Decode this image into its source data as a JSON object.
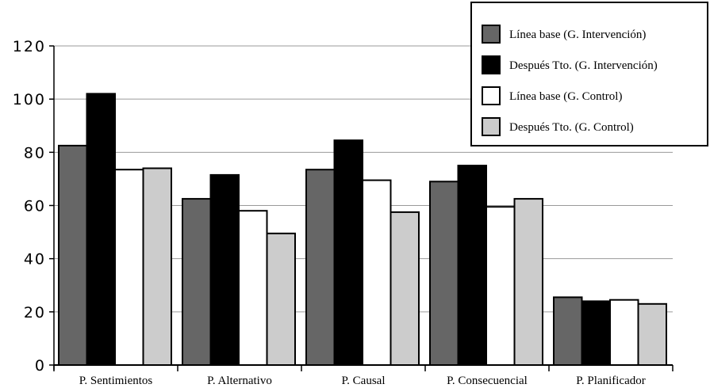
{
  "chart_data": {
    "type": "bar",
    "title": "",
    "xlabel": "",
    "ylabel": "",
    "ylim": [
      0,
      120
    ],
    "yticks": [
      0,
      20,
      40,
      60,
      80,
      100,
      120
    ],
    "grid": true,
    "legend_position": "top-right",
    "categories": [
      "P. Sentimientos",
      "P. Alternativo",
      "P. Causal",
      "P. Consecuencial",
      "P. Planificador"
    ],
    "series": [
      {
        "name": "Línea base (G. Intervención)",
        "color": "#666666",
        "values": [
          82.5,
          62.5,
          73.5,
          69,
          25.5
        ]
      },
      {
        "name": "Después Tto. (G. Intervención)",
        "color": "#000000",
        "values": [
          102,
          71.5,
          84.5,
          75,
          24
        ]
      },
      {
        "name": "Línea base (G. Control)",
        "color": "#ffffff",
        "values": [
          73.5,
          58,
          69.5,
          59.5,
          24.5
        ]
      },
      {
        "name": "Después Tto. (G. Control)",
        "color": "#cccccc",
        "values": [
          74,
          49.5,
          57.5,
          62.5,
          23
        ]
      }
    ]
  }
}
